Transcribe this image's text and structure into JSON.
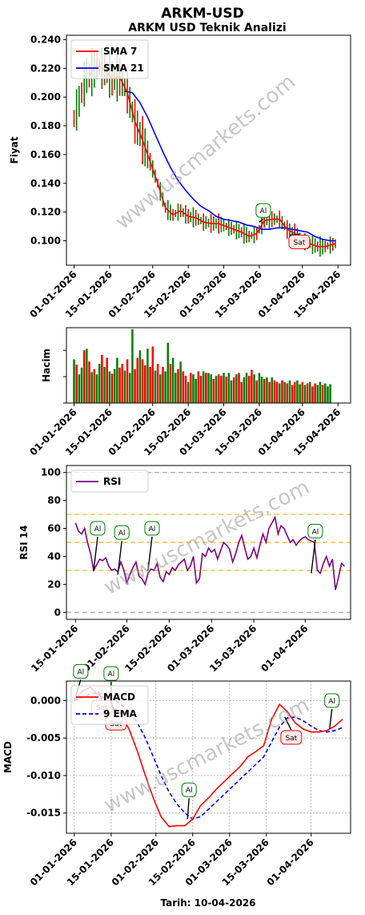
{
  "title": "ARKM-USD",
  "subtitle": "ARKM USD Teknik Analizi",
  "watermark": "www.uscmarkets.com",
  "footer": "Tarih: 10-04-2026",
  "colors": {
    "up": "#008000",
    "down": "#ff0000",
    "sma7": "#ff0000",
    "sma21": "#0000ff",
    "rsi": "#800080",
    "macd": "#ff0000",
    "signal": "#0000ff",
    "buy_border": "#008000",
    "sell_border": "#ff0000"
  },
  "chart_data": [
    {
      "type": "line",
      "id": "price",
      "ylabel": "Fiyat",
      "xlim": [
        "2025-12-29",
        "2026-04-20"
      ],
      "ylim": [
        0.083,
        0.243
      ],
      "yticks": [
        0.1,
        0.12,
        0.14,
        0.16,
        0.18,
        0.2,
        0.22,
        0.24
      ],
      "ytick_labels": [
        "0.100",
        "0.120",
        "0.140",
        "0.160",
        "0.180",
        "0.200",
        "0.220",
        "0.240"
      ],
      "xticks": [
        "2026-01-01",
        "2026-01-15",
        "2026-02-01",
        "2026-02-15",
        "2026-03-01",
        "2026-03-15",
        "2026-04-01",
        "2026-04-15"
      ],
      "xtick_labels": [
        "01-01-2026",
        "15-01-2026",
        "01-02-2026",
        "15-02-2026",
        "01-03-2026",
        "15-03-2026",
        "01-04-2026",
        "15-04-2026"
      ],
      "legend": "top-left",
      "series": [
        {
          "name": "SMA 7",
          "x": [
            "2026-01-07",
            "2026-01-10",
            "2026-01-13",
            "2026-01-16",
            "2026-01-19",
            "2026-01-22",
            "2026-01-25",
            "2026-01-28",
            "2026-01-31",
            "2026-02-03",
            "2026-02-06",
            "2026-02-09",
            "2026-02-12",
            "2026-02-15",
            "2026-02-18",
            "2026-02-21",
            "2026-02-24",
            "2026-02-27",
            "2026-03-02",
            "2026-03-05",
            "2026-03-08",
            "2026-03-11",
            "2026-03-14",
            "2026-03-17",
            "2026-03-20",
            "2026-03-23",
            "2026-03-26",
            "2026-03-29",
            "2026-04-01",
            "2026-04-04",
            "2026-04-07",
            "2026-04-10",
            "2026-04-14"
          ],
          "y": [
            0.215,
            0.222,
            0.219,
            0.213,
            0.214,
            0.203,
            0.183,
            0.17,
            0.155,
            0.14,
            0.123,
            0.118,
            0.121,
            0.117,
            0.116,
            0.113,
            0.112,
            0.112,
            0.11,
            0.108,
            0.106,
            0.103,
            0.105,
            0.114,
            0.115,
            0.115,
            0.108,
            0.105,
            0.1,
            0.098,
            0.096,
            0.096,
            0.098
          ]
        },
        {
          "name": "SMA 21",
          "x": [
            "2026-01-21",
            "2026-01-24",
            "2026-01-27",
            "2026-01-30",
            "2026-02-02",
            "2026-02-05",
            "2026-02-08",
            "2026-02-11",
            "2026-02-14",
            "2026-02-17",
            "2026-02-20",
            "2026-02-23",
            "2026-02-26",
            "2026-03-01",
            "2026-03-04",
            "2026-03-07",
            "2026-03-10",
            "2026-03-13",
            "2026-03-16",
            "2026-03-19",
            "2026-03-22",
            "2026-03-25",
            "2026-03-28",
            "2026-03-31",
            "2026-04-03",
            "2026-04-06",
            "2026-04-09",
            "2026-04-12",
            "2026-04-14"
          ],
          "y": [
            0.204,
            0.203,
            0.196,
            0.186,
            0.174,
            0.162,
            0.151,
            0.142,
            0.135,
            0.129,
            0.124,
            0.121,
            0.117,
            0.115,
            0.114,
            0.113,
            0.111,
            0.11,
            0.108,
            0.108,
            0.109,
            0.109,
            0.108,
            0.107,
            0.106,
            0.103,
            0.101,
            0.1,
            0.1
          ]
        }
      ],
      "annotations": [
        {
          "x": "2026-03-15",
          "y": 0.113,
          "text": "Al",
          "kind": "buy"
        },
        {
          "x": "2026-03-27",
          "y": 0.104,
          "text": "Sat",
          "kind": "sell"
        }
      ]
    },
    {
      "type": "bar",
      "id": "volume",
      "ylabel": "Hacim",
      "xlim": [
        "2025-12-29",
        "2026-04-20"
      ],
      "ylim": [
        0,
        100
      ],
      "xticks": [
        "2026-01-01",
        "2026-01-15",
        "2026-02-01",
        "2026-02-15",
        "2026-03-01",
        "2026-03-15",
        "2026-04-01",
        "2026-04-15"
      ],
      "xtick_labels": [
        "01-01-2026",
        "15-01-2026",
        "01-02-2026",
        "15-02-2026",
        "01-03-2026",
        "15-03-2026",
        "01-04-2026",
        "15-04-2026"
      ],
      "start": "2026-01-01",
      "values": [
        58,
        51,
        38,
        47,
        70,
        72,
        55,
        41,
        45,
        38,
        52,
        64,
        48,
        60,
        42,
        39,
        45,
        60,
        47,
        52,
        43,
        58,
        40,
        98,
        45,
        60,
        70,
        58,
        50,
        72,
        48,
        75,
        43,
        52,
        38,
        48,
        42,
        80,
        52,
        60,
        40,
        45,
        55,
        42,
        36,
        28,
        40,
        38,
        32,
        42,
        36,
        42,
        40,
        40,
        38,
        32,
        36,
        38,
        36,
        40,
        35,
        40,
        30,
        34,
        38,
        40,
        28,
        34,
        40,
        36,
        44,
        38,
        30,
        40,
        35,
        32,
        34,
        28,
        34,
        30,
        28,
        26,
        30,
        28,
        26,
        30,
        24,
        28,
        30,
        25,
        28,
        24,
        26,
        28,
        22,
        26,
        24,
        28,
        24,
        26,
        22,
        25
      ],
      "up": [
        1,
        0,
        1,
        1,
        0,
        1,
        0,
        1,
        0,
        1,
        1,
        0,
        1,
        0,
        1,
        0,
        1,
        1,
        0,
        0,
        1,
        0,
        1,
        1,
        0,
        0,
        1,
        0,
        0,
        1,
        0,
        0,
        1,
        0,
        1,
        0,
        1,
        1,
        0,
        1,
        1,
        0,
        1,
        0,
        0,
        1,
        0,
        1,
        1,
        0,
        0,
        1,
        0,
        1,
        1,
        0,
        1,
        0,
        0,
        1,
        0,
        1,
        1,
        0,
        1,
        0,
        0,
        1,
        1,
        0,
        0,
        1,
        0,
        1,
        1,
        0,
        1,
        0,
        1,
        0,
        0,
        1,
        0,
        1,
        0,
        1,
        0,
        0,
        1,
        1,
        0,
        1,
        0,
        1,
        0,
        0,
        1,
        1,
        0,
        1,
        1,
        1
      ]
    },
    {
      "type": "line",
      "id": "rsi",
      "ylabel": "RSI 14",
      "xlim": [
        "2026-01-12",
        "2026-04-16"
      ],
      "ylim": [
        -5,
        105
      ],
      "yticks": [
        0,
        20,
        40,
        60,
        80,
        100
      ],
      "ytick_labels": [
        "0",
        "20",
        "40",
        "60",
        "80",
        "100"
      ],
      "xticks": [
        "2026-01-15",
        "2026-02-01",
        "2026-02-15",
        "2026-03-01",
        "2026-03-15",
        "2026-04-01"
      ],
      "xtick_labels": [
        "15-01-2026",
        "01-02-2026",
        "15-02-2026",
        "01-03-2026",
        "15-03-2026",
        "01-04-2026"
      ],
      "legend": "top-left",
      "series": [
        {
          "name": "RSI",
          "x": [
            "2026-01-15",
            "2026-01-16",
            "2026-01-17",
            "2026-01-18",
            "2026-01-19",
            "2026-01-20",
            "2026-01-21",
            "2026-01-22",
            "2026-01-23",
            "2026-01-24",
            "2026-01-25",
            "2026-01-26",
            "2026-01-27",
            "2026-01-28",
            "2026-01-29",
            "2026-01-30",
            "2026-01-31",
            "2026-02-01",
            "2026-02-02",
            "2026-02-03",
            "2026-02-04",
            "2026-02-05",
            "2026-02-06",
            "2026-02-07",
            "2026-02-08",
            "2026-02-09",
            "2026-02-10",
            "2026-02-11",
            "2026-02-12",
            "2026-02-13",
            "2026-02-14",
            "2026-02-15",
            "2026-02-16",
            "2026-02-17",
            "2026-02-18",
            "2026-02-19",
            "2026-02-20",
            "2026-02-21",
            "2026-02-22",
            "2026-02-23",
            "2026-02-24",
            "2026-02-25",
            "2026-02-26",
            "2026-02-27",
            "2026-02-28",
            "2026-03-01",
            "2026-03-02",
            "2026-03-03",
            "2026-03-04",
            "2026-03-05",
            "2026-03-06",
            "2026-03-07",
            "2026-03-08",
            "2026-03-09",
            "2026-03-10",
            "2026-03-11",
            "2026-03-12",
            "2026-03-13",
            "2026-03-14",
            "2026-03-15",
            "2026-03-16",
            "2026-03-17",
            "2026-03-18",
            "2026-03-19",
            "2026-03-20",
            "2026-03-21",
            "2026-03-22",
            "2026-03-23",
            "2026-03-24",
            "2026-03-25",
            "2026-03-26",
            "2026-03-27",
            "2026-03-28",
            "2026-03-29",
            "2026-03-30",
            "2026-03-31",
            "2026-04-01",
            "2026-04-02",
            "2026-04-03",
            "2026-04-04",
            "2026-04-05",
            "2026-04-06",
            "2026-04-07",
            "2026-04-08",
            "2026-04-09",
            "2026-04-10",
            "2026-04-11",
            "2026-04-12",
            "2026-04-13",
            "2026-04-14"
          ],
          "y": [
            64,
            58,
            56,
            60,
            50,
            42,
            30,
            34,
            38,
            37,
            39,
            33,
            30,
            31,
            29,
            36,
            30,
            21,
            27,
            32,
            36,
            26,
            24,
            20,
            28,
            31,
            30,
            35,
            25,
            22,
            29,
            27,
            32,
            30,
            34,
            36,
            38,
            30,
            33,
            40,
            21,
            24,
            42,
            40,
            46,
            43,
            45,
            38,
            44,
            50,
            48,
            45,
            36,
            42,
            50,
            55,
            46,
            38,
            40,
            46,
            39,
            48,
            56,
            50,
            60,
            64,
            68,
            56,
            62,
            60,
            55,
            50,
            52,
            48,
            51,
            53,
            54,
            52,
            51,
            50,
            30,
            28,
            35,
            40,
            33,
            38,
            16,
            25,
            35,
            33
          ],
          "y_note": "values read approximately from the plotted line"
        }
      ],
      "reference_lines": [
        {
          "y": 100,
          "style": "dashed",
          "color": "#b0b0b0"
        },
        {
          "y": 70,
          "style": "dashed",
          "color": "#f0c040"
        },
        {
          "y": 50,
          "style": "dashed",
          "color": "#f0c040"
        },
        {
          "y": 30,
          "style": "dashed",
          "color": "#f0c040"
        },
        {
          "y": 0,
          "style": "dashed",
          "color": "#b0b0b0"
        }
      ],
      "annotations": [
        {
          "x": "2026-01-21",
          "y": 30,
          "text": "Al",
          "kind": "buy"
        },
        {
          "x": "2026-01-29",
          "y": 27,
          "text": "Al",
          "kind": "buy"
        },
        {
          "x": "2026-02-08",
          "y": 30,
          "text": "Al",
          "kind": "buy"
        },
        {
          "x": "2026-04-03",
          "y": 28,
          "text": "Al",
          "kind": "buy"
        }
      ]
    },
    {
      "type": "line",
      "id": "macd",
      "ylabel": "MACD",
      "xlabel": "Tarih: 10-04-2026",
      "xlim": [
        "2025-12-29",
        "2026-04-16"
      ],
      "ylim": [
        -0.0177,
        0.0026
      ],
      "yticks": [
        -0.015,
        -0.01,
        -0.005,
        0.0
      ],
      "ytick_labels": [
        "-0.015",
        "-0.010",
        "-0.005",
        "0.000"
      ],
      "xticks": [
        "2026-01-01",
        "2026-01-15",
        "2026-02-01",
        "2026-02-15",
        "2026-03-01",
        "2026-03-15",
        "2026-04-01"
      ],
      "xtick_labels": [
        "01-01-2026",
        "15-01-2026",
        "01-02-2026",
        "15-02-2026",
        "01-03-2026",
        "15-03-2026",
        "01-04-2026"
      ],
      "grid": true,
      "legend": "top-left",
      "series": [
        {
          "name": "MACD",
          "x": [
            "2026-01-01",
            "2026-01-04",
            "2026-01-07",
            "2026-01-10",
            "2026-01-13",
            "2026-01-16",
            "2026-01-19",
            "2026-01-22",
            "2026-01-25",
            "2026-01-28",
            "2026-01-31",
            "2026-02-03",
            "2026-02-06",
            "2026-02-09",
            "2026-02-12",
            "2026-02-15",
            "2026-02-18",
            "2026-02-21",
            "2026-02-24",
            "2026-02-27",
            "2026-03-02",
            "2026-03-05",
            "2026-03-08",
            "2026-03-11",
            "2026-03-14",
            "2026-03-17",
            "2026-03-20",
            "2026-03-23",
            "2026-03-26",
            "2026-03-29",
            "2026-04-01",
            "2026-04-04",
            "2026-04-07",
            "2026-04-10",
            "2026-04-13"
          ],
          "y": [
            0.0,
            0.0012,
            0.0018,
            0.0008,
            0.0002,
            -0.001,
            -0.0018,
            -0.004,
            -0.0068,
            -0.01,
            -0.013,
            -0.0155,
            -0.0168,
            -0.0167,
            -0.0167,
            -0.0158,
            -0.014,
            -0.013,
            -0.0118,
            -0.0108,
            -0.0098,
            -0.0088,
            -0.0075,
            -0.0068,
            -0.006,
            -0.0025,
            -0.0005,
            -0.0015,
            -0.003,
            -0.0038,
            -0.0042,
            -0.0042,
            -0.004,
            -0.0034,
            -0.0025
          ]
        },
        {
          "name": "9 EMA",
          "x": [
            "2026-01-01",
            "2026-01-04",
            "2026-01-07",
            "2026-01-10",
            "2026-01-13",
            "2026-01-16",
            "2026-01-19",
            "2026-01-22",
            "2026-01-25",
            "2026-01-28",
            "2026-01-31",
            "2026-02-03",
            "2026-02-06",
            "2026-02-09",
            "2026-02-12",
            "2026-02-15",
            "2026-02-18",
            "2026-02-21",
            "2026-02-24",
            "2026-02-27",
            "2026-03-02",
            "2026-03-05",
            "2026-03-08",
            "2026-03-11",
            "2026-03-14",
            "2026-03-17",
            "2026-03-20",
            "2026-03-23",
            "2026-03-26",
            "2026-03-29",
            "2026-04-01",
            "2026-04-04",
            "2026-04-07",
            "2026-04-10",
            "2026-04-13"
          ],
          "y": [
            0.0,
            0.0004,
            0.0009,
            0.001,
            0.0008,
            0.0002,
            -0.0006,
            -0.0015,
            -0.003,
            -0.005,
            -0.0075,
            -0.01,
            -0.0122,
            -0.0138,
            -0.015,
            -0.0158,
            -0.0155,
            -0.0145,
            -0.0135,
            -0.0125,
            -0.0115,
            -0.0105,
            -0.0095,
            -0.0085,
            -0.0075,
            -0.0055,
            -0.0035,
            -0.0023,
            -0.0022,
            -0.0027,
            -0.0034,
            -0.004,
            -0.0042,
            -0.004,
            -0.0036
          ]
        }
      ],
      "annotations": [
        {
          "x": "2026-01-01",
          "y": 0.0,
          "text": "Al",
          "kind": "buy"
        },
        {
          "x": "2026-01-10",
          "y": 0.0012,
          "text": "Sat",
          "kind": "sell"
        },
        {
          "x": "2026-01-15",
          "y": -0.0003,
          "text": "Al",
          "kind": "buy"
        },
        {
          "x": "2026-01-15",
          "y": -0.0003,
          "text": "Sat",
          "kind": "sell"
        },
        {
          "x": "2026-02-13",
          "y": -0.0158,
          "text": "Al",
          "kind": "buy"
        },
        {
          "x": "2026-03-22",
          "y": -0.0022,
          "text": "Sat",
          "kind": "sell"
        },
        {
          "x": "2026-04-08",
          "y": -0.0038,
          "text": "Al",
          "kind": "buy"
        }
      ]
    }
  ]
}
